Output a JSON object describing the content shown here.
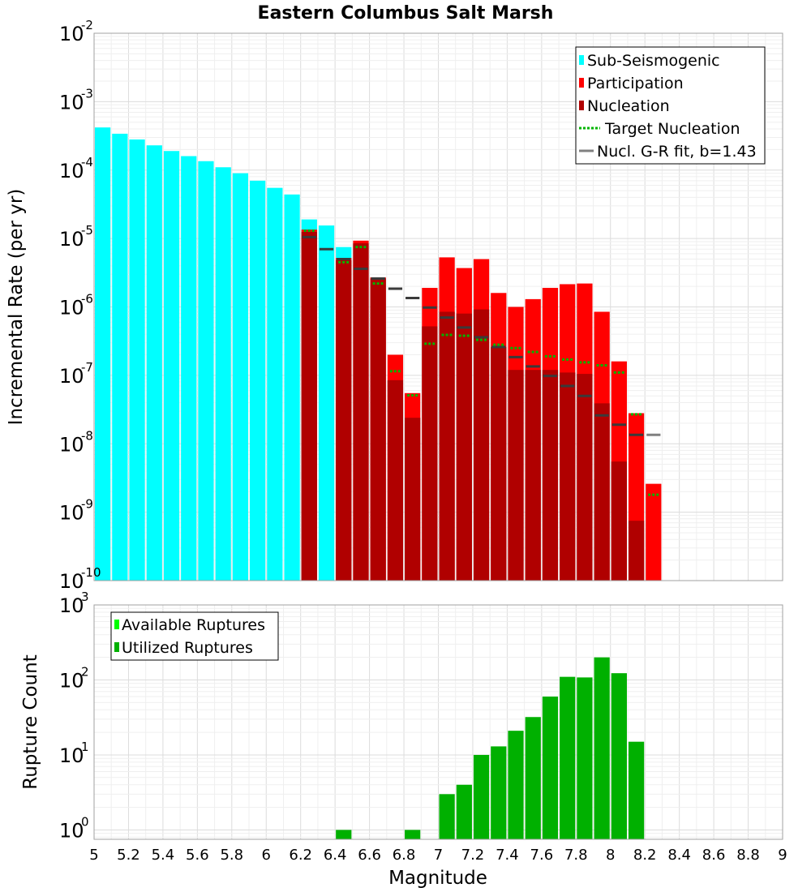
{
  "title": "Eastern Columbus Salt Marsh",
  "chart_data": [
    {
      "type": "bar",
      "name": "incremental-rate",
      "ylabel": "Incremental Rate (per yr)",
      "yscale": "log",
      "ylim": [
        1e-10,
        0.01
      ],
      "xlim": [
        5,
        9
      ],
      "ytick_exponents": [
        "-10",
        "-9",
        "-8",
        "-7",
        "-6",
        "-5",
        "-4",
        "-3",
        "-2"
      ],
      "ytick_base": "10",
      "bin_width": 0.1,
      "colors": {
        "sub_seismogenic": "#00ffff",
        "participation": "#ff0000",
        "nucleation": "#b00000",
        "target": "#00b400",
        "gr_fit": "#808080"
      },
      "legend": {
        "position": "top-right",
        "sub_seismogenic": "Sub-Seismogenic",
        "participation": "Participation",
        "nucleation": "Nucleation",
        "target": "Target Nucleation",
        "gr_fit": "Nucl. G-R fit, b=1.43"
      },
      "sub_seismogenic": {
        "x": [
          5.05,
          5.15,
          5.25,
          5.35,
          5.45,
          5.55,
          5.65,
          5.75,
          5.85,
          5.95,
          6.05,
          6.15,
          6.25,
          6.35,
          6.45
        ],
        "values": [
          0.00042,
          0.00034,
          0.00028,
          0.00023,
          0.00019,
          0.00016,
          0.000135,
          0.00011,
          9e-05,
          7e-05,
          5.5e-05,
          4.4e-05,
          1.9e-05,
          1.55e-05,
          7.5e-06
        ]
      },
      "participation": {
        "x": [
          6.25,
          6.45,
          6.55,
          6.65,
          6.75,
          6.85,
          6.95,
          7.05,
          7.15,
          7.25,
          7.35,
          7.45,
          7.55,
          7.65,
          7.75,
          7.85,
          7.95,
          8.05,
          8.15,
          8.25
        ],
        "values": [
          1.35e-05,
          5.2e-06,
          9.3e-06,
          2.7e-06,
          2e-07,
          5.5e-08,
          1.9e-06,
          5.3e-06,
          3.7e-06,
          5e-06,
          1.6e-06,
          1e-06,
          1.3e-06,
          1.9e-06,
          2.15e-06,
          2.2e-06,
          8.5e-07,
          1.6e-07,
          2.8e-08,
          2.6e-09
        ]
      },
      "nucleation": {
        "x": [
          6.25,
          6.45,
          6.55,
          6.65,
          6.75,
          6.85,
          6.95,
          7.05,
          7.15,
          7.25,
          7.35,
          7.45,
          7.55,
          7.65,
          7.75,
          7.85,
          7.95,
          8.05,
          8.15
        ],
        "values": [
          1.25e-05,
          4.8e-06,
          8.5e-06,
          2.6e-06,
          8.5e-08,
          2.4e-08,
          5.2e-07,
          8.5e-07,
          8e-07,
          9.2e-07,
          2.6e-07,
          1.2e-07,
          1.2e-07,
          1.2e-07,
          1.1e-07,
          1.05e-07,
          3.9e-08,
          5.5e-09,
          7.5e-10
        ]
      },
      "target_nucleation": {
        "x": [
          6.25,
          6.45,
          6.55,
          6.65,
          6.75,
          6.85,
          6.95,
          7.05,
          7.15,
          7.25,
          7.35,
          7.45,
          7.55,
          7.65,
          7.75,
          7.85,
          7.95,
          8.05,
          8.15,
          8.25
        ],
        "values": [
          1.3e-05,
          4.5e-06,
          7.5e-06,
          2.2e-06,
          1.15e-07,
          5.1e-08,
          2.9e-07,
          3.9e-07,
          3.8e-07,
          3.3e-07,
          2.8e-07,
          2.5e-07,
          2.2e-07,
          1.9e-07,
          1.7e-07,
          1.55e-07,
          1.4e-07,
          1.1e-07,
          2.7e-08,
          1.8e-09
        ]
      },
      "gr_fit": {
        "x": [
          6.25,
          6.35,
          6.45,
          6.55,
          6.65,
          6.75,
          6.85,
          6.95,
          7.05,
          7.15,
          7.25,
          7.35,
          7.45,
          7.55,
          7.65,
          7.75,
          7.85,
          7.95,
          8.05,
          8.15,
          8.25
        ],
        "values": [
          1.05e-05,
          7e-06,
          5e-06,
          3.6e-06,
          2.6e-06,
          1.85e-06,
          1.35e-06,
          9.8e-07,
          7e-07,
          5e-07,
          3.6e-07,
          2.6e-07,
          1.85e-07,
          1.35e-07,
          9.8e-08,
          7e-08,
          5e-08,
          2.6e-08,
          1.9e-08,
          1.35e-08,
          1.35e-08
        ]
      }
    },
    {
      "type": "bar",
      "name": "rupture-count",
      "ylabel": "Rupture Count",
      "xlabel": "Magnitude",
      "yscale": "log",
      "ylim": [
        0.75,
        1000
      ],
      "xlim": [
        5,
        9
      ],
      "ytick_exponents": [
        "0",
        "1",
        "2",
        "3"
      ],
      "ytick_base": "10",
      "xticks": [
        "5",
        "5.2",
        "5.4",
        "5.6",
        "5.8",
        "6",
        "6.2",
        "6.4",
        "6.6",
        "6.8",
        "7",
        "7.2",
        "7.4",
        "7.6",
        "7.8",
        "8",
        "8.2",
        "8.4",
        "8.6",
        "8.8",
        "9"
      ],
      "colors": {
        "available": "#00ff00",
        "utilized": "#00b000"
      },
      "legend": {
        "position": "top-left",
        "available": "Available Ruptures",
        "utilized": "Utilized Ruptures"
      },
      "utilized": {
        "x": [
          6.45,
          6.85,
          7.05,
          7.15,
          7.25,
          7.35,
          7.45,
          7.55,
          7.65,
          7.75,
          7.85,
          7.95,
          8.05,
          8.15
        ],
        "values": [
          1,
          1,
          3,
          4,
          10,
          13,
          21,
          32,
          60,
          110,
          108,
          200,
          123,
          15
        ]
      }
    }
  ]
}
